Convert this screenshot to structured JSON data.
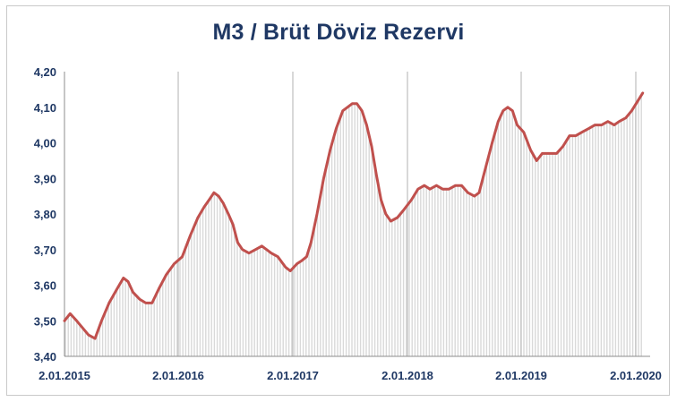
{
  "chart_data": {
    "type": "area",
    "title": "M3 / Brüt Döviz Rezervi",
    "xlabel": "",
    "ylabel": "",
    "x_ticks": [
      "2.01.2015",
      "2.01.2016",
      "2.01.2017",
      "2.01.2018",
      "2.01.2019",
      "2.01.2020"
    ],
    "y_ticks": [
      "3,40",
      "3,50",
      "3,60",
      "3,70",
      "3,80",
      "3,90",
      "4,00",
      "4,10",
      "4,20"
    ],
    "ylim": [
      3.4,
      4.2
    ],
    "xlim": [
      "2015-01-02",
      "2020-01-24"
    ],
    "grid": "vertical at year starts",
    "legend": "none",
    "colors": {
      "line": "#c0504d",
      "fill": "#d9d9d9",
      "grid": "#bfbfbf",
      "text": "#1f3864"
    },
    "series": [
      {
        "values": [
          [
            "2015-01-02",
            3.5
          ],
          [
            "2015-01-20",
            3.52
          ],
          [
            "2015-02-10",
            3.5
          ],
          [
            "2015-03-01",
            3.48
          ],
          [
            "2015-03-20",
            3.46
          ],
          [
            "2015-04-10",
            3.45
          ],
          [
            "2015-05-01",
            3.5
          ],
          [
            "2015-05-25",
            3.55
          ],
          [
            "2015-06-20",
            3.59
          ],
          [
            "2015-07-10",
            3.62
          ],
          [
            "2015-07-25",
            3.61
          ],
          [
            "2015-08-10",
            3.58
          ],
          [
            "2015-09-01",
            3.56
          ],
          [
            "2015-09-20",
            3.55
          ],
          [
            "2015-10-10",
            3.55
          ],
          [
            "2015-11-01",
            3.59
          ],
          [
            "2015-11-25",
            3.63
          ],
          [
            "2015-12-20",
            3.66
          ],
          [
            "2016-01-15",
            3.68
          ],
          [
            "2016-02-10",
            3.74
          ],
          [
            "2016-03-05",
            3.79
          ],
          [
            "2016-03-25",
            3.82
          ],
          [
            "2016-04-10",
            3.84
          ],
          [
            "2016-04-25",
            3.86
          ],
          [
            "2016-05-10",
            3.85
          ],
          [
            "2016-05-25",
            3.83
          ],
          [
            "2016-06-10",
            3.8
          ],
          [
            "2016-06-25",
            3.77
          ],
          [
            "2016-07-10",
            3.72
          ],
          [
            "2016-07-25",
            3.7
          ],
          [
            "2016-08-15",
            3.69
          ],
          [
            "2016-09-05",
            3.7
          ],
          [
            "2016-09-25",
            3.71
          ],
          [
            "2016-10-10",
            3.7
          ],
          [
            "2016-10-25",
            3.69
          ],
          [
            "2016-11-15",
            3.68
          ],
          [
            "2016-12-10",
            3.65
          ],
          [
            "2016-12-25",
            3.64
          ],
          [
            "2017-01-15",
            3.66
          ],
          [
            "2017-02-01",
            3.67
          ],
          [
            "2017-02-15",
            3.68
          ],
          [
            "2017-03-01",
            3.72
          ],
          [
            "2017-03-20",
            3.8
          ],
          [
            "2017-04-10",
            3.9
          ],
          [
            "2017-05-01",
            3.98
          ],
          [
            "2017-05-20",
            4.04
          ],
          [
            "2017-06-10",
            4.09
          ],
          [
            "2017-06-25",
            4.1
          ],
          [
            "2017-07-10",
            4.11
          ],
          [
            "2017-07-25",
            4.11
          ],
          [
            "2017-08-10",
            4.09
          ],
          [
            "2017-08-25",
            4.05
          ],
          [
            "2017-09-10",
            3.99
          ],
          [
            "2017-09-25",
            3.91
          ],
          [
            "2017-10-10",
            3.84
          ],
          [
            "2017-10-25",
            3.8
          ],
          [
            "2017-11-10",
            3.78
          ],
          [
            "2017-12-01",
            3.79
          ],
          [
            "2017-12-20",
            3.81
          ],
          [
            "2018-01-15",
            3.84
          ],
          [
            "2018-02-05",
            3.87
          ],
          [
            "2018-02-25",
            3.88
          ],
          [
            "2018-03-15",
            3.87
          ],
          [
            "2018-04-05",
            3.88
          ],
          [
            "2018-04-25",
            3.87
          ],
          [
            "2018-05-15",
            3.87
          ],
          [
            "2018-06-05",
            3.88
          ],
          [
            "2018-06-25",
            3.88
          ],
          [
            "2018-07-15",
            3.86
          ],
          [
            "2018-08-05",
            3.85
          ],
          [
            "2018-08-20",
            3.86
          ],
          [
            "2018-09-10",
            3.93
          ],
          [
            "2018-10-01",
            4.0
          ],
          [
            "2018-10-20",
            4.06
          ],
          [
            "2018-11-05",
            4.09
          ],
          [
            "2018-11-20",
            4.1
          ],
          [
            "2018-12-05",
            4.09
          ],
          [
            "2018-12-20",
            4.05
          ],
          [
            "2019-01-10",
            4.03
          ],
          [
            "2019-02-01",
            3.98
          ],
          [
            "2019-02-20",
            3.95
          ],
          [
            "2019-03-10",
            3.97
          ],
          [
            "2019-04-01",
            3.97
          ],
          [
            "2019-04-25",
            3.97
          ],
          [
            "2019-05-15",
            3.99
          ],
          [
            "2019-06-05",
            4.02
          ],
          [
            "2019-06-25",
            4.02
          ],
          [
            "2019-07-15",
            4.03
          ],
          [
            "2019-08-05",
            4.04
          ],
          [
            "2019-08-25",
            4.05
          ],
          [
            "2019-09-15",
            4.05
          ],
          [
            "2019-10-05",
            4.06
          ],
          [
            "2019-10-25",
            4.05
          ],
          [
            "2019-11-10",
            4.06
          ],
          [
            "2019-12-01",
            4.07
          ],
          [
            "2019-12-20",
            4.09
          ],
          [
            "2020-01-10",
            4.12
          ],
          [
            "2020-01-24",
            4.14
          ]
        ]
      }
    ]
  }
}
